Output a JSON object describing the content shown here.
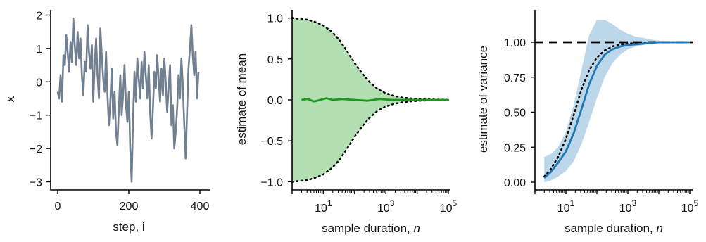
{
  "colors": {
    "trace": "#708090",
    "mean_line": "#1a9a1a",
    "mean_band": "#b3dfb3",
    "var_line": "#1f77b4",
    "var_band": "#bcd6ea",
    "reference": "#000000"
  },
  "chart_data": [
    {
      "type": "line",
      "id": "trace",
      "xlabel": "step, i",
      "ylabel": "x",
      "xlim": [
        -10,
        410
      ],
      "ylim": [
        -3.2,
        2.2
      ],
      "xticks": [
        0,
        200,
        400
      ],
      "xtick_labels": [
        "0",
        "200",
        "400"
      ],
      "yticks": [
        2,
        1,
        0,
        -1,
        -2,
        -3
      ],
      "ytick_labels": [
        "2",
        "1",
        "0",
        "−1",
        "−2",
        "−3"
      ],
      "series": [
        {
          "x": [
            0,
            4,
            8,
            12,
            16,
            20,
            24,
            28,
            32,
            36,
            40,
            44,
            48,
            52,
            56,
            60,
            64,
            68,
            72,
            76,
            80,
            84,
            88,
            92,
            96,
            100,
            104,
            108,
            112,
            116,
            120,
            124,
            128,
            132,
            136,
            140,
            144,
            148,
            152,
            156,
            160,
            164,
            168,
            172,
            176,
            180,
            184,
            188,
            192,
            196,
            200,
            204,
            208,
            212,
            216,
            220,
            224,
            228,
            232,
            236,
            240,
            244,
            248,
            252,
            256,
            260,
            264,
            268,
            272,
            276,
            280,
            284,
            288,
            292,
            296,
            300,
            304,
            308,
            312,
            316,
            320,
            324,
            328,
            332,
            336,
            340,
            344,
            348,
            352,
            356,
            360,
            364,
            368,
            372,
            376,
            380,
            384,
            388,
            392,
            396
          ],
          "values": [
            -0.3,
            -0.5,
            0.2,
            -0.6,
            0.8,
            0.5,
            1.4,
            0.9,
            0.3,
            1.2,
            0.6,
            1.9,
            1.1,
            0.5,
            1.5,
            0.7,
            1.3,
            0.2,
            -0.4,
            0.6,
            0.3,
            1.7,
            0.9,
            0.4,
            1.1,
            -0.6,
            0.5,
            1.3,
            0.2,
            -0.5,
            1.6,
            0.8,
            0.1,
            -0.3,
            0.9,
            -0.4,
            -1.3,
            -0.6,
            0.4,
            -1.1,
            -0.3,
            -1.5,
            -1.9,
            -0.8,
            0.2,
            -1.0,
            -0.4,
            0.5,
            -0.7,
            -1.2,
            -0.3,
            -2.0,
            -3.0,
            -1.1,
            0.3,
            -0.6,
            0.7,
            0.1,
            -0.5,
            0.6,
            -0.2,
            0.9,
            0.2,
            -0.5,
            0.5,
            -0.9,
            -1.7,
            -0.8,
            0.3,
            -0.2,
            0.8,
            0.1,
            -0.6,
            0.4,
            -0.4,
            0.7,
            0.0,
            -0.9,
            -0.2,
            0.5,
            -1.3,
            -0.7,
            -2.0,
            -1.5,
            -0.8,
            0.2,
            -0.5,
            0.7,
            -0.1,
            -1.3,
            -2.3,
            -0.9,
            0.4,
            1.0,
            1.7,
            0.8,
            0.2,
            0.9,
            -0.5,
            0.3
          ]
        }
      ]
    },
    {
      "type": "area",
      "id": "mean",
      "xlabel": "sample duration, ",
      "xlabel_italic": "n",
      "ylabel": "estimate of mean",
      "xscale": "log",
      "xlim_exp": [
        0,
        5
      ],
      "ylim": [
        -1.1,
        1.1
      ],
      "xticks_exp": [
        1,
        3,
        5
      ],
      "xtick_base": "10",
      "xtick_exponents": [
        "1",
        "3",
        "5"
      ],
      "yticks": [
        1.0,
        0.5,
        0.0,
        -0.5,
        -1.0
      ],
      "ytick_labels": [
        "1.0",
        "0.5",
        "0.0",
        "−0.5",
        "−1.0"
      ],
      "series": [
        {
          "kind": "band",
          "x_exp": [
            0,
            0.25,
            0.5,
            0.75,
            1.0,
            1.25,
            1.5,
            1.75,
            2.0,
            2.25,
            2.5,
            2.75,
            3.0,
            3.25,
            3.5,
            3.75,
            4.0,
            4.25,
            4.5,
            4.75,
            5.0
          ],
          "upper": [
            1.0,
            0.99,
            0.98,
            0.95,
            0.91,
            0.84,
            0.74,
            0.6,
            0.45,
            0.32,
            0.21,
            0.13,
            0.08,
            0.05,
            0.03,
            0.02,
            0.012,
            0.008,
            0.005,
            0.003,
            0.002
          ],
          "lower": [
            -1.0,
            -0.99,
            -0.98,
            -0.95,
            -0.91,
            -0.84,
            -0.74,
            -0.6,
            -0.45,
            -0.32,
            -0.21,
            -0.13,
            -0.08,
            -0.05,
            -0.03,
            -0.02,
            -0.012,
            -0.008,
            -0.005,
            -0.003,
            -0.002
          ]
        },
        {
          "kind": "line",
          "x_exp": [
            0.3,
            0.5,
            0.7,
            0.9,
            1.1,
            1.3,
            1.6,
            2.0,
            2.4,
            2.8,
            3.2,
            3.6,
            4.0,
            4.5,
            5.0
          ],
          "values": [
            0.0,
            0.01,
            -0.02,
            0.0,
            0.02,
            0.0,
            0.01,
            0.0,
            -0.01,
            0.01,
            0.0,
            0.0,
            0.0,
            0.0,
            0.0
          ]
        }
      ]
    },
    {
      "type": "area",
      "id": "variance",
      "xlabel": "sample duration, ",
      "xlabel_italic": "n",
      "ylabel": "estimate of variance",
      "xscale": "log",
      "xlim_exp": [
        0,
        5
      ],
      "ylim": [
        -0.05,
        1.25
      ],
      "xticks_exp": [
        1,
        3,
        5
      ],
      "xtick_base": "10",
      "xtick_exponents": [
        "1",
        "3",
        "5"
      ],
      "yticks": [
        1.0,
        0.75,
        0.5,
        0.25,
        0.0
      ],
      "ytick_labels": [
        "1.00",
        "0.75",
        "0.50",
        "0.25",
        "0.00"
      ],
      "reference_y": 1.0,
      "series": [
        {
          "kind": "band",
          "x_exp": [
            0.3,
            0.5,
            0.75,
            1.0,
            1.25,
            1.5,
            1.75,
            2.0,
            2.25,
            2.5,
            2.75,
            3.0,
            3.25,
            3.5,
            3.75,
            4.0,
            4.5,
            5.0
          ],
          "upper": [
            0.18,
            0.2,
            0.25,
            0.36,
            0.55,
            0.8,
            1.05,
            1.16,
            1.16,
            1.13,
            1.09,
            1.06,
            1.04,
            1.03,
            1.02,
            1.01,
            1.005,
            1.0
          ],
          "lower": [
            0.0,
            0.01,
            0.04,
            0.08,
            0.15,
            0.27,
            0.43,
            0.6,
            0.75,
            0.85,
            0.91,
            0.95,
            0.97,
            0.98,
            0.99,
            0.995,
            0.998,
            1.0
          ]
        },
        {
          "kind": "line",
          "x_exp": [
            0.3,
            0.5,
            0.75,
            1.0,
            1.25,
            1.5,
            1.75,
            2.0,
            2.25,
            2.5,
            2.75,
            3.0,
            3.5,
            4.0,
            4.5,
            5.0
          ],
          "values": [
            0.03,
            0.07,
            0.14,
            0.22,
            0.35,
            0.52,
            0.7,
            0.83,
            0.91,
            0.95,
            0.97,
            0.98,
            0.99,
            1.0,
            1.0,
            1.0
          ]
        },
        {
          "kind": "dotted",
          "x_exp": [
            0.3,
            0.5,
            0.75,
            1.0,
            1.25,
            1.5,
            1.75,
            2.0,
            2.25,
            2.5,
            2.75,
            3.0,
            3.5,
            4.0,
            4.5,
            5.0
          ],
          "values": [
            0.04,
            0.09,
            0.18,
            0.31,
            0.48,
            0.66,
            0.8,
            0.89,
            0.94,
            0.97,
            0.985,
            0.99,
            0.997,
            1.0,
            1.0,
            1.0
          ]
        }
      ]
    }
  ]
}
